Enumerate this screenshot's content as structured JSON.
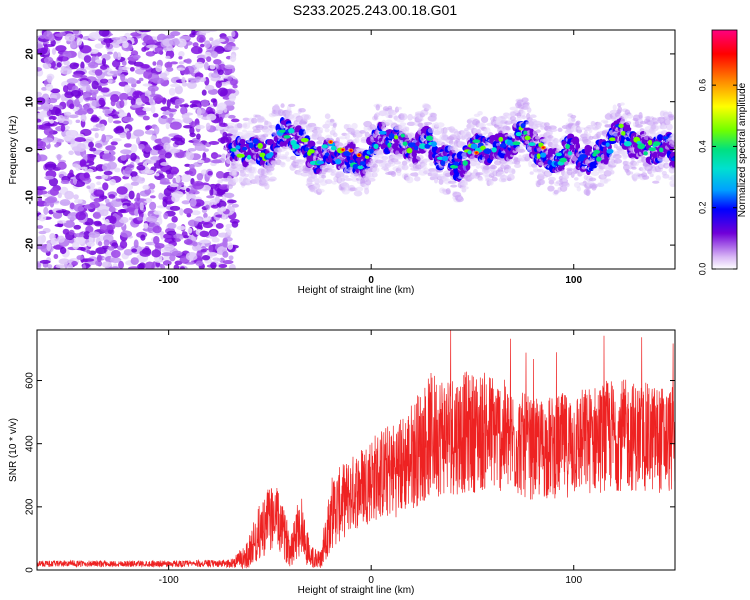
{
  "title": "S233.2025.243.00.18.G01",
  "chart_data": [
    {
      "type": "heatmap",
      "name": "spectrogram",
      "xlabel": "Height of straight line (km)",
      "ylabel": "Frequency (Hz)",
      "xlim": [
        -165,
        150
      ],
      "ylim": [
        -25,
        25
      ],
      "xticks": [
        -100,
        0,
        100
      ],
      "yticks": [
        -20,
        -10,
        0,
        10,
        20
      ],
      "noise_region_x": [
        -165,
        -70
      ],
      "signal_center_hz": 0,
      "colorbar": {
        "label": "Normalized spectral amplitude",
        "range": [
          0.0,
          0.78
        ],
        "ticks": [
          0.0,
          0.2,
          0.4,
          0.6
        ],
        "colors": [
          "#ffffff",
          "#7000d8",
          "#0000ff",
          "#00a0ff",
          "#00e0d0",
          "#00e080",
          "#70ff00",
          "#ffff00",
          "#ff9000",
          "#ff0000",
          "#ff0080"
        ]
      }
    },
    {
      "type": "line",
      "name": "snr",
      "xlabel": "Height of straight line (km)",
      "ylabel": "SNR (10 * v/v)",
      "xlim": [
        -165,
        150
      ],
      "ylim": [
        0,
        760
      ],
      "xticks": [
        -100,
        0,
        100
      ],
      "yticks": [
        0,
        200,
        400,
        600
      ],
      "color": "#ee2222",
      "envelope": [
        {
          "x": -165,
          "mean": 20,
          "amp": 10
        },
        {
          "x": -100,
          "mean": 20,
          "amp": 10
        },
        {
          "x": -70,
          "mean": 20,
          "amp": 12
        },
        {
          "x": -62,
          "mean": 40,
          "amp": 40
        },
        {
          "x": -55,
          "mean": 120,
          "amp": 90
        },
        {
          "x": -48,
          "mean": 180,
          "amp": 110
        },
        {
          "x": -40,
          "mean": 70,
          "amp": 60
        },
        {
          "x": -35,
          "mean": 150,
          "amp": 110
        },
        {
          "x": -30,
          "mean": 40,
          "amp": 40
        },
        {
          "x": -25,
          "mean": 30,
          "amp": 30
        },
        {
          "x": -20,
          "mean": 180,
          "amp": 120
        },
        {
          "x": -10,
          "mean": 240,
          "amp": 120
        },
        {
          "x": 0,
          "mean": 290,
          "amp": 140
        },
        {
          "x": 15,
          "mean": 330,
          "amp": 160
        },
        {
          "x": 30,
          "mean": 430,
          "amp": 200
        },
        {
          "x": 60,
          "mean": 440,
          "amp": 190
        },
        {
          "x": 80,
          "mean": 380,
          "amp": 160
        },
        {
          "x": 100,
          "mean": 400,
          "amp": 170
        },
        {
          "x": 120,
          "mean": 430,
          "amp": 180
        },
        {
          "x": 150,
          "mean": 410,
          "amp": 170
        }
      ]
    }
  ]
}
